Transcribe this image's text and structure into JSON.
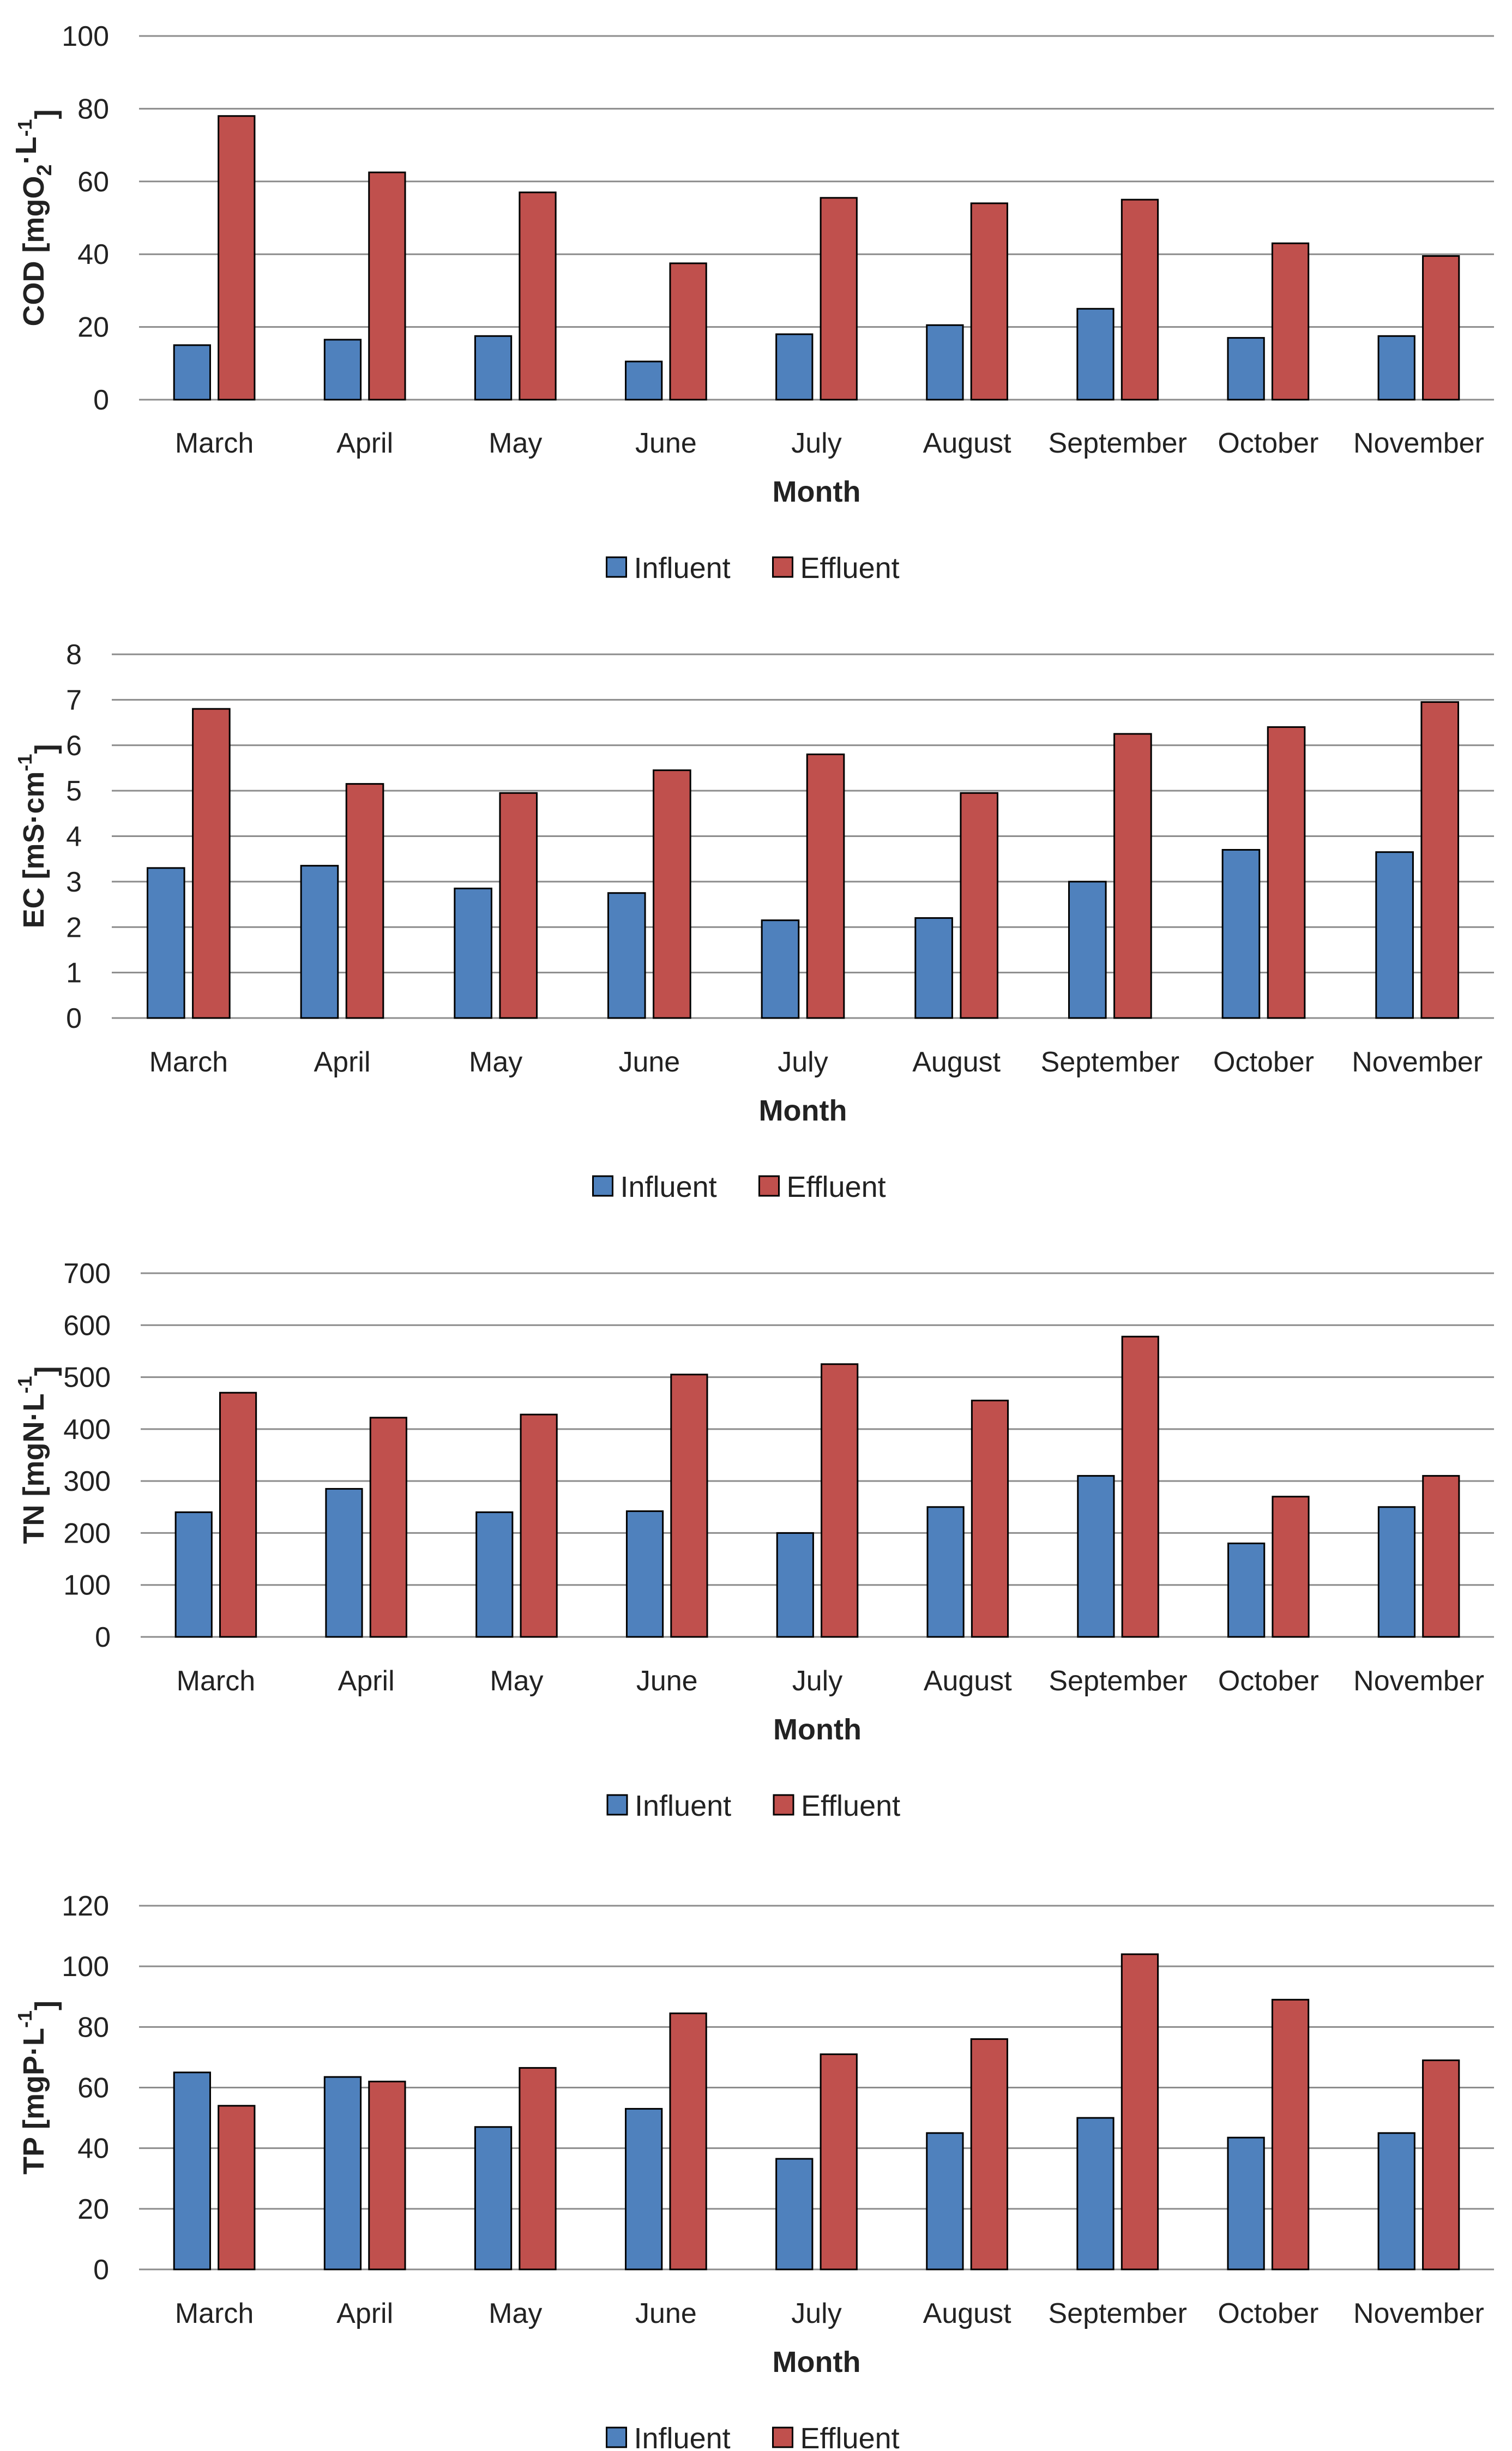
{
  "chart_data": [
    {
      "type": "bar",
      "title": "",
      "xlabel": "Month",
      "ylabel": "COD [mgO2·L-1]",
      "ylabel_main": "COD [mgO",
      "ylabel_sub": "2",
      "ylabel_mid": "·L",
      "ylabel_sup": "-1",
      "ylabel_end": "]",
      "ylim": [
        0,
        100
      ],
      "yticks": [
        0,
        20,
        40,
        60,
        80,
        100
      ],
      "grid": true,
      "legend": "bottom",
      "categories": [
        "March",
        "April",
        "May",
        "June",
        "July",
        "August",
        "September",
        "October",
        "November"
      ],
      "series": [
        {
          "name": "Influent",
          "color": "#4F81BD",
          "values": [
            15,
            16.5,
            17.5,
            10.5,
            18,
            20.5,
            25,
            17,
            17.5
          ]
        },
        {
          "name": "Effluent",
          "color": "#C0504D",
          "values": [
            78,
            62.5,
            57,
            37.5,
            55.5,
            54,
            55,
            43,
            39.5
          ]
        }
      ]
    },
    {
      "type": "bar",
      "title": "",
      "xlabel": "Month",
      "ylabel": "EC [mS·cm-1]",
      "ylabel_main": "EC [mS·cm",
      "ylabel_sub": "",
      "ylabel_mid": "",
      "ylabel_sup": "-1",
      "ylabel_end": "]",
      "ylim": [
        0,
        8
      ],
      "yticks": [
        0,
        1,
        2,
        3,
        4,
        5,
        6,
        7,
        8
      ],
      "grid": true,
      "legend": "bottom",
      "categories": [
        "March",
        "April",
        "May",
        "June",
        "July",
        "August",
        "September",
        "October",
        "November"
      ],
      "series": [
        {
          "name": "Influent",
          "color": "#4F81BD",
          "values": [
            3.3,
            3.35,
            2.85,
            2.75,
            2.15,
            2.2,
            3.0,
            3.7,
            3.65
          ]
        },
        {
          "name": "Effluent",
          "color": "#C0504D",
          "values": [
            6.8,
            5.15,
            4.95,
            5.45,
            5.8,
            4.95,
            6.25,
            6.4,
            6.95
          ]
        }
      ]
    },
    {
      "type": "bar",
      "title": "",
      "xlabel": "Month",
      "ylabel": "TN [mgN·L-1]",
      "ylabel_main": "TN [mgN·L",
      "ylabel_sub": "",
      "ylabel_mid": "",
      "ylabel_sup": "-1",
      "ylabel_end": "]",
      "ylim": [
        0,
        700
      ],
      "yticks": [
        0,
        100,
        200,
        300,
        400,
        500,
        600,
        700
      ],
      "grid": true,
      "legend": "bottom",
      "categories": [
        "March",
        "April",
        "May",
        "June",
        "July",
        "August",
        "September",
        "October",
        "November"
      ],
      "series": [
        {
          "name": "Influent",
          "color": "#4F81BD",
          "values": [
            240,
            285,
            240,
            242,
            200,
            250,
            310,
            180,
            250
          ]
        },
        {
          "name": "Effluent",
          "color": "#C0504D",
          "values": [
            470,
            422,
            428,
            505,
            525,
            455,
            578,
            270,
            310
          ]
        }
      ]
    },
    {
      "type": "bar",
      "title": "",
      "xlabel": "Month",
      "ylabel": "TP [mgP·L-1]",
      "ylabel_main": "TP [mgP·L",
      "ylabel_sub": "",
      "ylabel_mid": "",
      "ylabel_sup": "-1",
      "ylabel_end": "]",
      "ylim": [
        0,
        120
      ],
      "yticks": [
        0,
        20,
        40,
        60,
        80,
        100,
        120
      ],
      "grid": true,
      "legend": "bottom",
      "categories": [
        "March",
        "April",
        "May",
        "June",
        "July",
        "August",
        "September",
        "October",
        "November"
      ],
      "series": [
        {
          "name": "Influent",
          "color": "#4F81BD",
          "values": [
            65,
            63.5,
            47,
            53,
            36.5,
            45,
            50,
            43.5,
            45
          ]
        },
        {
          "name": "Effluent",
          "color": "#C0504D",
          "values": [
            54,
            62,
            66.5,
            84.5,
            71,
            76,
            104,
            89,
            69
          ]
        }
      ]
    }
  ]
}
